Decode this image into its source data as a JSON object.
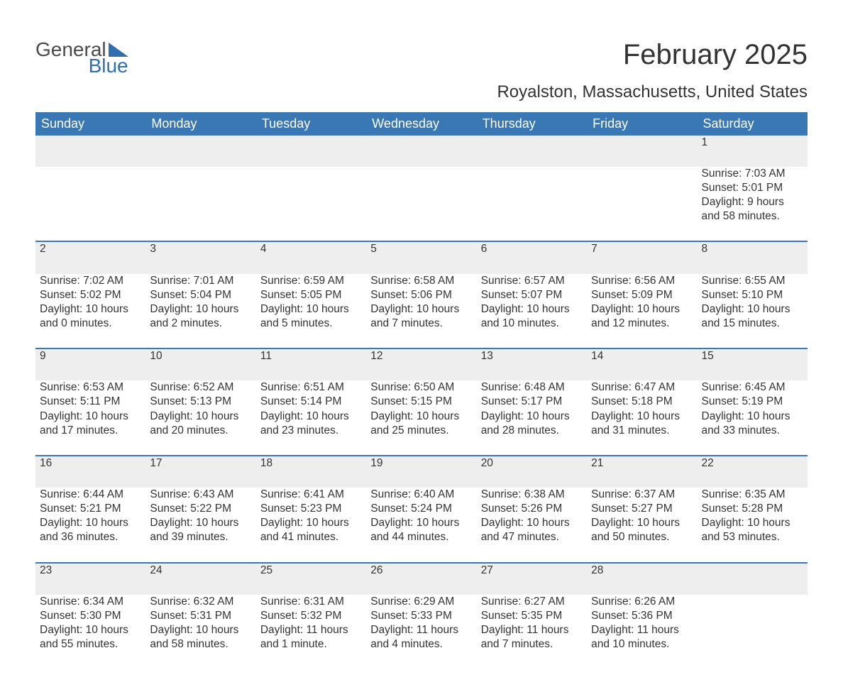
{
  "logo": {
    "text1": "General",
    "text2": "Blue"
  },
  "title": "February 2025",
  "location": "Royalston, Massachusetts, United States",
  "colors": {
    "header_bg": "#3a78b5",
    "header_text": "#ffffff",
    "row_divider": "#3a78b5",
    "daynum_bg": "#eeeeee",
    "body_text": "#333333",
    "logo_accent": "#2f6fb0",
    "logo_gray": "#4a4a4a",
    "page_bg": "#ffffff"
  },
  "days_of_week": [
    "Sunday",
    "Monday",
    "Tuesday",
    "Wednesday",
    "Thursday",
    "Friday",
    "Saturday"
  ],
  "weeks": [
    [
      {
        "num": "",
        "sunrise": "",
        "sunset": "",
        "daylight": ""
      },
      {
        "num": "",
        "sunrise": "",
        "sunset": "",
        "daylight": ""
      },
      {
        "num": "",
        "sunrise": "",
        "sunset": "",
        "daylight": ""
      },
      {
        "num": "",
        "sunrise": "",
        "sunset": "",
        "daylight": ""
      },
      {
        "num": "",
        "sunrise": "",
        "sunset": "",
        "daylight": ""
      },
      {
        "num": "",
        "sunrise": "",
        "sunset": "",
        "daylight": ""
      },
      {
        "num": "1",
        "sunrise": "Sunrise: 7:03 AM",
        "sunset": "Sunset: 5:01 PM",
        "daylight": "Daylight: 9 hours and 58 minutes."
      }
    ],
    [
      {
        "num": "2",
        "sunrise": "Sunrise: 7:02 AM",
        "sunset": "Sunset: 5:02 PM",
        "daylight": "Daylight: 10 hours and 0 minutes."
      },
      {
        "num": "3",
        "sunrise": "Sunrise: 7:01 AM",
        "sunset": "Sunset: 5:04 PM",
        "daylight": "Daylight: 10 hours and 2 minutes."
      },
      {
        "num": "4",
        "sunrise": "Sunrise: 6:59 AM",
        "sunset": "Sunset: 5:05 PM",
        "daylight": "Daylight: 10 hours and 5 minutes."
      },
      {
        "num": "5",
        "sunrise": "Sunrise: 6:58 AM",
        "sunset": "Sunset: 5:06 PM",
        "daylight": "Daylight: 10 hours and 7 minutes."
      },
      {
        "num": "6",
        "sunrise": "Sunrise: 6:57 AM",
        "sunset": "Sunset: 5:07 PM",
        "daylight": "Daylight: 10 hours and 10 minutes."
      },
      {
        "num": "7",
        "sunrise": "Sunrise: 6:56 AM",
        "sunset": "Sunset: 5:09 PM",
        "daylight": "Daylight: 10 hours and 12 minutes."
      },
      {
        "num": "8",
        "sunrise": "Sunrise: 6:55 AM",
        "sunset": "Sunset: 5:10 PM",
        "daylight": "Daylight: 10 hours and 15 minutes."
      }
    ],
    [
      {
        "num": "9",
        "sunrise": "Sunrise: 6:53 AM",
        "sunset": "Sunset: 5:11 PM",
        "daylight": "Daylight: 10 hours and 17 minutes."
      },
      {
        "num": "10",
        "sunrise": "Sunrise: 6:52 AM",
        "sunset": "Sunset: 5:13 PM",
        "daylight": "Daylight: 10 hours and 20 minutes."
      },
      {
        "num": "11",
        "sunrise": "Sunrise: 6:51 AM",
        "sunset": "Sunset: 5:14 PM",
        "daylight": "Daylight: 10 hours and 23 minutes."
      },
      {
        "num": "12",
        "sunrise": "Sunrise: 6:50 AM",
        "sunset": "Sunset: 5:15 PM",
        "daylight": "Daylight: 10 hours and 25 minutes."
      },
      {
        "num": "13",
        "sunrise": "Sunrise: 6:48 AM",
        "sunset": "Sunset: 5:17 PM",
        "daylight": "Daylight: 10 hours and 28 minutes."
      },
      {
        "num": "14",
        "sunrise": "Sunrise: 6:47 AM",
        "sunset": "Sunset: 5:18 PM",
        "daylight": "Daylight: 10 hours and 31 minutes."
      },
      {
        "num": "15",
        "sunrise": "Sunrise: 6:45 AM",
        "sunset": "Sunset: 5:19 PM",
        "daylight": "Daylight: 10 hours and 33 minutes."
      }
    ],
    [
      {
        "num": "16",
        "sunrise": "Sunrise: 6:44 AM",
        "sunset": "Sunset: 5:21 PM",
        "daylight": "Daylight: 10 hours and 36 minutes."
      },
      {
        "num": "17",
        "sunrise": "Sunrise: 6:43 AM",
        "sunset": "Sunset: 5:22 PM",
        "daylight": "Daylight: 10 hours and 39 minutes."
      },
      {
        "num": "18",
        "sunrise": "Sunrise: 6:41 AM",
        "sunset": "Sunset: 5:23 PM",
        "daylight": "Daylight: 10 hours and 41 minutes."
      },
      {
        "num": "19",
        "sunrise": "Sunrise: 6:40 AM",
        "sunset": "Sunset: 5:24 PM",
        "daylight": "Daylight: 10 hours and 44 minutes."
      },
      {
        "num": "20",
        "sunrise": "Sunrise: 6:38 AM",
        "sunset": "Sunset: 5:26 PM",
        "daylight": "Daylight: 10 hours and 47 minutes."
      },
      {
        "num": "21",
        "sunrise": "Sunrise: 6:37 AM",
        "sunset": "Sunset: 5:27 PM",
        "daylight": "Daylight: 10 hours and 50 minutes."
      },
      {
        "num": "22",
        "sunrise": "Sunrise: 6:35 AM",
        "sunset": "Sunset: 5:28 PM",
        "daylight": "Daylight: 10 hours and 53 minutes."
      }
    ],
    [
      {
        "num": "23",
        "sunrise": "Sunrise: 6:34 AM",
        "sunset": "Sunset: 5:30 PM",
        "daylight": "Daylight: 10 hours and 55 minutes."
      },
      {
        "num": "24",
        "sunrise": "Sunrise: 6:32 AM",
        "sunset": "Sunset: 5:31 PM",
        "daylight": "Daylight: 10 hours and 58 minutes."
      },
      {
        "num": "25",
        "sunrise": "Sunrise: 6:31 AM",
        "sunset": "Sunset: 5:32 PM",
        "daylight": "Daylight: 11 hours and 1 minute."
      },
      {
        "num": "26",
        "sunrise": "Sunrise: 6:29 AM",
        "sunset": "Sunset: 5:33 PM",
        "daylight": "Daylight: 11 hours and 4 minutes."
      },
      {
        "num": "27",
        "sunrise": "Sunrise: 6:27 AM",
        "sunset": "Sunset: 5:35 PM",
        "daylight": "Daylight: 11 hours and 7 minutes."
      },
      {
        "num": "28",
        "sunrise": "Sunrise: 6:26 AM",
        "sunset": "Sunset: 5:36 PM",
        "daylight": "Daylight: 11 hours and 10 minutes."
      },
      {
        "num": "",
        "sunrise": "",
        "sunset": "",
        "daylight": ""
      }
    ]
  ]
}
